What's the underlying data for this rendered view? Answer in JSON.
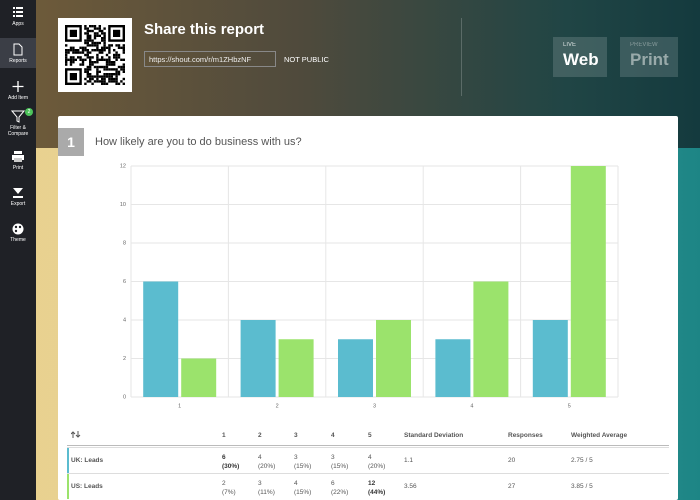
{
  "sidebar": {
    "items": [
      {
        "label": "Apps"
      },
      {
        "label": "Reports"
      },
      {
        "label": "Add Item"
      },
      {
        "label": "Filter & Compare",
        "badge": "2"
      },
      {
        "label": "Print"
      },
      {
        "label": "Export"
      },
      {
        "label": "Theme"
      }
    ]
  },
  "share": {
    "title": "Share this report",
    "url": "https://shout.com/r/m1ZHbzNF",
    "status": "NOT PUBLIC",
    "buttons": [
      {
        "small": "LIVE",
        "big": "Web"
      },
      {
        "small": "PREVIEW",
        "big": "Print"
      }
    ]
  },
  "question": {
    "number": "1",
    "text": "How likely are you to do business with us?"
  },
  "chart_data": {
    "type": "bar",
    "categories": [
      "1",
      "2",
      "3",
      "4",
      "5"
    ],
    "series": [
      {
        "color": "#5bbccf",
        "values": [
          6,
          4,
          3,
          3,
          4
        ]
      },
      {
        "color": "#9be36c",
        "values": [
          2,
          3,
          4,
          6,
          12
        ]
      }
    ],
    "ylim": [
      0,
      12
    ],
    "yticks": [
      0,
      2,
      4,
      6,
      8,
      10,
      12
    ],
    "grid": true
  },
  "table": {
    "headers": [
      "1",
      "2",
      "3",
      "4",
      "5",
      "Standard Deviation",
      "Responses",
      "Weighted Average"
    ],
    "rows": [
      {
        "name": "UK: Leads",
        "color": "#5bbccf",
        "cells": [
          {
            "count": "6",
            "pct": "(30%)",
            "bold": true
          },
          {
            "count": "4",
            "pct": "(20%)"
          },
          {
            "count": "3",
            "pct": "(15%)"
          },
          {
            "count": "3",
            "pct": "(15%)"
          },
          {
            "count": "4",
            "pct": "(20%)"
          }
        ],
        "std": "1.1",
        "responses": "20",
        "weighted": "2.75 / 5"
      },
      {
        "name": "US: Leads",
        "color": "#9be36c",
        "cells": [
          {
            "count": "2",
            "pct": "(7%)"
          },
          {
            "count": "3",
            "pct": "(11%)"
          },
          {
            "count": "4",
            "pct": "(15%)"
          },
          {
            "count": "6",
            "pct": "(22%)"
          },
          {
            "count": "12",
            "pct": "(44%)",
            "bold": true
          }
        ],
        "std": "3.56",
        "responses": "27",
        "weighted": "3.85 / 5"
      }
    ]
  }
}
